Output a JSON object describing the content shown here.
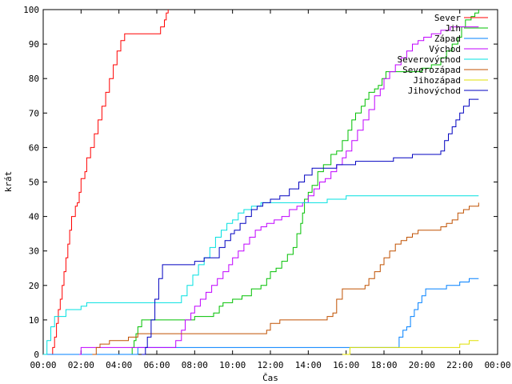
{
  "chart_data": {
    "type": "line",
    "title": "",
    "xlabel": "Čas",
    "ylabel": "krát",
    "ylim": [
      0,
      100
    ],
    "xlim": [
      "00:00",
      "24:00"
    ],
    "x_ticks": [
      "00:00",
      "02:00",
      "04:00",
      "06:00",
      "08:00",
      "10:00",
      "12:00",
      "14:00",
      "16:00",
      "18:00",
      "20:00",
      "22:00",
      "00:00"
    ],
    "y_ticks": [
      0,
      10,
      20,
      30,
      40,
      50,
      60,
      70,
      80,
      90,
      100
    ],
    "grid": false,
    "legend_position": "top-right",
    "series": [
      {
        "name": "Sever",
        "color": "#ff0000",
        "points": [
          [
            0.45,
            0
          ],
          [
            0.5,
            2
          ],
          [
            0.6,
            5
          ],
          [
            0.7,
            9
          ],
          [
            0.8,
            13
          ],
          [
            0.9,
            16
          ],
          [
            1.0,
            20
          ],
          [
            1.1,
            24
          ],
          [
            1.2,
            28
          ],
          [
            1.3,
            32
          ],
          [
            1.4,
            36
          ],
          [
            1.5,
            40
          ],
          [
            1.7,
            43
          ],
          [
            1.8,
            44
          ],
          [
            1.9,
            47
          ],
          [
            2.0,
            51
          ],
          [
            2.2,
            53
          ],
          [
            2.3,
            57
          ],
          [
            2.5,
            60
          ],
          [
            2.7,
            64
          ],
          [
            2.9,
            68
          ],
          [
            3.1,
            72
          ],
          [
            3.3,
            76
          ],
          [
            3.5,
            80
          ],
          [
            3.7,
            84
          ],
          [
            3.9,
            88
          ],
          [
            4.1,
            91
          ],
          [
            4.3,
            93
          ],
          [
            4.7,
            93
          ],
          [
            5.0,
            93
          ],
          [
            5.5,
            93
          ],
          [
            6.0,
            93
          ],
          [
            6.2,
            95
          ],
          [
            6.4,
            97
          ],
          [
            6.5,
            99
          ],
          [
            6.6,
            100
          ]
        ]
      },
      {
        "name": "Jih",
        "color": "#00c000",
        "points": [
          [
            4.6,
            0
          ],
          [
            4.7,
            2
          ],
          [
            4.8,
            4
          ],
          [
            4.9,
            6
          ],
          [
            5.0,
            8
          ],
          [
            5.2,
            10
          ],
          [
            5.5,
            10
          ],
          [
            6.5,
            10
          ],
          [
            7.0,
            10
          ],
          [
            7.5,
            10
          ],
          [
            8.0,
            11
          ],
          [
            8.5,
            11
          ],
          [
            9.0,
            12
          ],
          [
            9.3,
            14
          ],
          [
            9.5,
            15
          ],
          [
            10.0,
            16
          ],
          [
            10.5,
            17
          ],
          [
            11.0,
            19
          ],
          [
            11.5,
            20
          ],
          [
            11.8,
            22
          ],
          [
            12.0,
            24
          ],
          [
            12.3,
            25
          ],
          [
            12.6,
            27
          ],
          [
            12.9,
            29
          ],
          [
            13.2,
            31
          ],
          [
            13.4,
            35
          ],
          [
            13.6,
            38
          ],
          [
            13.7,
            41
          ],
          [
            13.8,
            45
          ],
          [
            14.0,
            47
          ],
          [
            14.2,
            49
          ],
          [
            14.5,
            53
          ],
          [
            14.8,
            55
          ],
          [
            15.0,
            55
          ],
          [
            15.2,
            58
          ],
          [
            15.5,
            59
          ],
          [
            15.8,
            62
          ],
          [
            16.0,
            62
          ],
          [
            16.1,
            65
          ],
          [
            16.3,
            68
          ],
          [
            16.5,
            70
          ],
          [
            16.8,
            72
          ],
          [
            17.0,
            74
          ],
          [
            17.2,
            76
          ],
          [
            17.5,
            77
          ],
          [
            17.7,
            78
          ],
          [
            17.9,
            80
          ],
          [
            18.1,
            82
          ],
          [
            18.5,
            82
          ],
          [
            19.0,
            82
          ],
          [
            19.5,
            82
          ],
          [
            20.0,
            83
          ],
          [
            20.5,
            84
          ],
          [
            21.0,
            86
          ],
          [
            21.3,
            88
          ],
          [
            21.6,
            90
          ],
          [
            21.9,
            92
          ],
          [
            22.1,
            95
          ],
          [
            22.3,
            97
          ],
          [
            22.6,
            98
          ],
          [
            22.8,
            99
          ],
          [
            23.0,
            100
          ]
        ]
      },
      {
        "name": "Západ",
        "color": "#0080ff",
        "points": [
          [
            0,
            0
          ],
          [
            5.0,
            2
          ],
          [
            16.0,
            2
          ],
          [
            18.5,
            2
          ],
          [
            18.8,
            5
          ],
          [
            19.0,
            7
          ],
          [
            19.2,
            8
          ],
          [
            19.4,
            11
          ],
          [
            19.6,
            13
          ],
          [
            19.8,
            15
          ],
          [
            20.0,
            17
          ],
          [
            20.2,
            19
          ],
          [
            20.5,
            19
          ],
          [
            21.0,
            19
          ],
          [
            21.3,
            20
          ],
          [
            21.5,
            20
          ],
          [
            22.0,
            21
          ],
          [
            22.5,
            22
          ],
          [
            23.0,
            22
          ]
        ]
      },
      {
        "name": "Východ",
        "color": "#c000ff",
        "points": [
          [
            1.9,
            0
          ],
          [
            2.0,
            2
          ],
          [
            2.5,
            2
          ],
          [
            3.0,
            2
          ],
          [
            5.0,
            2
          ],
          [
            6.0,
            2
          ],
          [
            6.8,
            2
          ],
          [
            7.0,
            4
          ],
          [
            7.3,
            7
          ],
          [
            7.5,
            10
          ],
          [
            7.8,
            12
          ],
          [
            8.0,
            14
          ],
          [
            8.3,
            16
          ],
          [
            8.6,
            18
          ],
          [
            8.9,
            20
          ],
          [
            9.2,
            22
          ],
          [
            9.5,
            24
          ],
          [
            9.8,
            26
          ],
          [
            10.0,
            28
          ],
          [
            10.3,
            30
          ],
          [
            10.6,
            32
          ],
          [
            10.9,
            34
          ],
          [
            11.2,
            36
          ],
          [
            11.5,
            37
          ],
          [
            11.8,
            38
          ],
          [
            12.2,
            39
          ],
          [
            12.6,
            40
          ],
          [
            13.0,
            42
          ],
          [
            13.4,
            43
          ],
          [
            13.7,
            44
          ],
          [
            14.0,
            46
          ],
          [
            14.3,
            48
          ],
          [
            14.6,
            50
          ],
          [
            14.9,
            51
          ],
          [
            15.2,
            53
          ],
          [
            15.5,
            55
          ],
          [
            15.8,
            57
          ],
          [
            16.0,
            59
          ],
          [
            16.3,
            62
          ],
          [
            16.6,
            65
          ],
          [
            16.9,
            68
          ],
          [
            17.2,
            71
          ],
          [
            17.5,
            75
          ],
          [
            17.8,
            77
          ],
          [
            18.0,
            80
          ],
          [
            18.3,
            82
          ],
          [
            18.6,
            84
          ],
          [
            18.9,
            86
          ],
          [
            19.2,
            88
          ],
          [
            19.5,
            90
          ],
          [
            19.8,
            91
          ],
          [
            20.1,
            92
          ],
          [
            20.5,
            93
          ],
          [
            21.0,
            94
          ],
          [
            21.5,
            95
          ],
          [
            22.0,
            95
          ],
          [
            22.5,
            95
          ],
          [
            23.0,
            95
          ]
        ]
      },
      {
        "name": "Severovýchod",
        "color": "#00e0e0",
        "points": [
          [
            0,
            0
          ],
          [
            0.2,
            4
          ],
          [
            0.4,
            8
          ],
          [
            0.6,
            11
          ],
          [
            0.9,
            11
          ],
          [
            1.2,
            13
          ],
          [
            1.5,
            13
          ],
          [
            2.0,
            14
          ],
          [
            2.3,
            15
          ],
          [
            3.0,
            15
          ],
          [
            4.0,
            15
          ],
          [
            5.0,
            15
          ],
          [
            6.0,
            15
          ],
          [
            7.0,
            15
          ],
          [
            7.3,
            17
          ],
          [
            7.6,
            20
          ],
          [
            7.9,
            23
          ],
          [
            8.2,
            26
          ],
          [
            8.5,
            28
          ],
          [
            8.8,
            31
          ],
          [
            9.1,
            34
          ],
          [
            9.4,
            36
          ],
          [
            9.7,
            38
          ],
          [
            10.0,
            39
          ],
          [
            10.3,
            41
          ],
          [
            10.6,
            42
          ],
          [
            11.0,
            43
          ],
          [
            11.5,
            44
          ],
          [
            12.0,
            44
          ],
          [
            13.0,
            44
          ],
          [
            14.0,
            44
          ],
          [
            14.5,
            44
          ],
          [
            15.0,
            45
          ],
          [
            16.0,
            46
          ],
          [
            17.0,
            46
          ],
          [
            18.0,
            46
          ],
          [
            19.0,
            46
          ],
          [
            20.0,
            46
          ],
          [
            21.0,
            46
          ],
          [
            22.0,
            46
          ],
          [
            23.0,
            46
          ]
        ]
      },
      {
        "name": "Severozápad",
        "color": "#c05000",
        "points": [
          [
            2.6,
            0
          ],
          [
            2.8,
            2
          ],
          [
            3.0,
            3
          ],
          [
            3.5,
            4
          ],
          [
            4.0,
            4
          ],
          [
            4.5,
            5
          ],
          [
            5.0,
            6
          ],
          [
            6.0,
            6
          ],
          [
            7.0,
            6
          ],
          [
            8.0,
            6
          ],
          [
            9.0,
            6
          ],
          [
            10.0,
            6
          ],
          [
            11.0,
            6
          ],
          [
            11.8,
            7
          ],
          [
            12.0,
            9
          ],
          [
            12.5,
            10
          ],
          [
            13.0,
            10
          ],
          [
            14.0,
            10
          ],
          [
            15.0,
            11
          ],
          [
            15.3,
            12
          ],
          [
            15.5,
            16
          ],
          [
            15.8,
            19
          ],
          [
            16.0,
            19
          ],
          [
            16.5,
            19
          ],
          [
            17.0,
            20
          ],
          [
            17.2,
            22
          ],
          [
            17.5,
            24
          ],
          [
            17.8,
            26
          ],
          [
            18.0,
            28
          ],
          [
            18.3,
            30
          ],
          [
            18.6,
            32
          ],
          [
            18.9,
            33
          ],
          [
            19.2,
            34
          ],
          [
            19.5,
            35
          ],
          [
            19.8,
            36
          ],
          [
            20.1,
            36
          ],
          [
            20.5,
            36
          ],
          [
            21.0,
            37
          ],
          [
            21.3,
            38
          ],
          [
            21.6,
            39
          ],
          [
            21.9,
            41
          ],
          [
            22.2,
            42
          ],
          [
            22.5,
            43
          ],
          [
            23.0,
            44
          ]
        ]
      },
      {
        "name": "Jihozápad",
        "color": "#e0e000",
        "points": [
          [
            15.8,
            0
          ],
          [
            16.2,
            2
          ],
          [
            17.0,
            2
          ],
          [
            18.0,
            2
          ],
          [
            19.0,
            2
          ],
          [
            20.0,
            2
          ],
          [
            21.0,
            2
          ],
          [
            22.0,
            3
          ],
          [
            22.5,
            4
          ],
          [
            23.0,
            4
          ]
        ]
      },
      {
        "name": "Jihovýchod",
        "color": "#0000c0",
        "points": [
          [
            5.2,
            0
          ],
          [
            5.4,
            2
          ],
          [
            5.5,
            5
          ],
          [
            5.7,
            10
          ],
          [
            5.9,
            16
          ],
          [
            6.1,
            22
          ],
          [
            6.3,
            26
          ],
          [
            6.6,
            26
          ],
          [
            7.0,
            26
          ],
          [
            7.5,
            26
          ],
          [
            8.0,
            27
          ],
          [
            8.5,
            28
          ],
          [
            9.0,
            28
          ],
          [
            9.3,
            31
          ],
          [
            9.6,
            33
          ],
          [
            9.9,
            35
          ],
          [
            10.1,
            36
          ],
          [
            10.4,
            38
          ],
          [
            10.7,
            40
          ],
          [
            11.0,
            42
          ],
          [
            11.3,
            43
          ],
          [
            11.6,
            44
          ],
          [
            12.0,
            45
          ],
          [
            12.5,
            46
          ],
          [
            13.0,
            48
          ],
          [
            13.5,
            50
          ],
          [
            13.8,
            52
          ],
          [
            14.2,
            54
          ],
          [
            14.5,
            54
          ],
          [
            15.0,
            54
          ],
          [
            15.5,
            55
          ],
          [
            16.0,
            55
          ],
          [
            16.5,
            56
          ],
          [
            17.0,
            56
          ],
          [
            17.5,
            56
          ],
          [
            18.0,
            56
          ],
          [
            18.5,
            57
          ],
          [
            19.0,
            57
          ],
          [
            19.5,
            58
          ],
          [
            20.0,
            58
          ],
          [
            20.5,
            58
          ],
          [
            21.0,
            59
          ],
          [
            21.2,
            62
          ],
          [
            21.4,
            64
          ],
          [
            21.6,
            66
          ],
          [
            21.8,
            68
          ],
          [
            22.0,
            70
          ],
          [
            22.2,
            72
          ],
          [
            22.5,
            74
          ],
          [
            23.0,
            74
          ]
        ]
      }
    ]
  }
}
